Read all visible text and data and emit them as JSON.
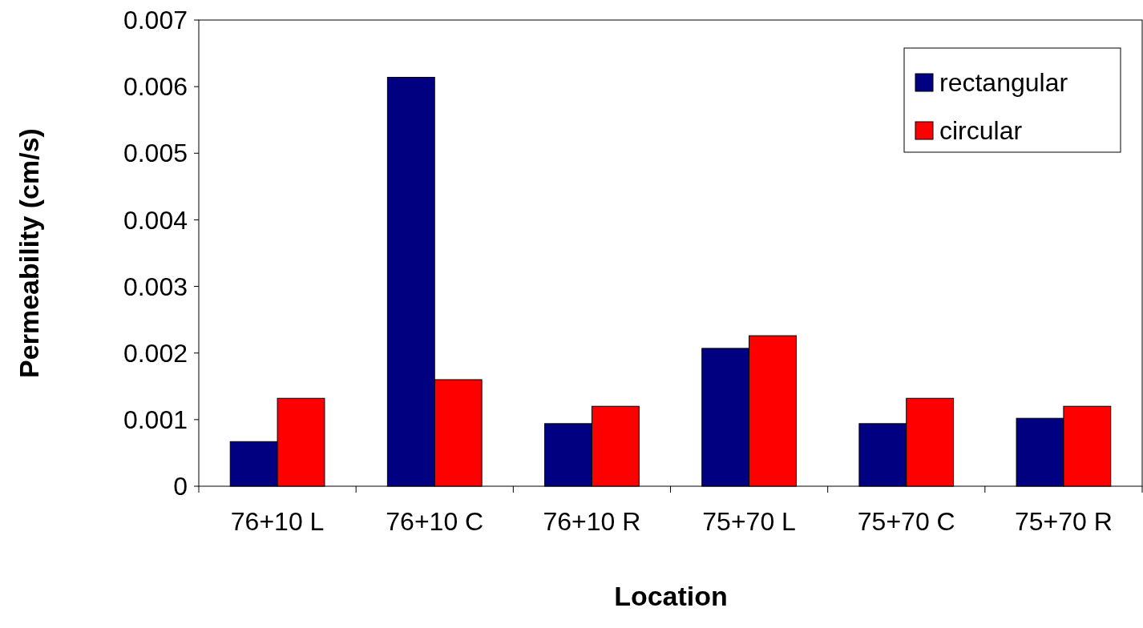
{
  "chart_data": {
    "type": "bar",
    "xlabel": "Location",
    "ylabel": "Permeability (cm/s)",
    "categories": [
      "76+10 L",
      "76+10 C",
      "76+10 R",
      "75+70 L",
      "75+70 C",
      "75+70 R"
    ],
    "series": [
      {
        "name": "rectangular",
        "color": "#000080",
        "values": [
          0.00067,
          0.00614,
          0.00094,
          0.00207,
          0.00094,
          0.00102
        ]
      },
      {
        "name": "circular",
        "color": "#ff0000",
        "values": [
          0.00132,
          0.0016,
          0.0012,
          0.00226,
          0.00132,
          0.0012
        ]
      }
    ],
    "ylim": [
      0,
      0.007
    ],
    "yticks": [
      0,
      0.001,
      0.002,
      0.003,
      0.004,
      0.005,
      0.006,
      0.007
    ],
    "legend": "top right",
    "grid": false
  }
}
